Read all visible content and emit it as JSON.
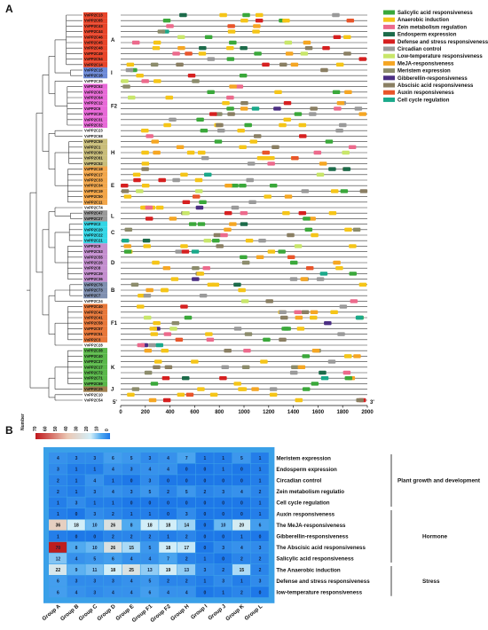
{
  "panel_a_label": "A",
  "panel_b_label": "B",
  "chart_data": [
    {
      "type": "diagram",
      "x_start": 0,
      "x_end": 2000,
      "x_ticks": [
        "0",
        "200",
        "400",
        "600",
        "800",
        "1000",
        "1200",
        "1400",
        "1600",
        "1800",
        "2000"
      ],
      "five_prime": "5'",
      "three_prime": "3'",
      "legend": [
        {
          "name": "Salicylic acid responsiveness",
          "color": "#3aa83a"
        },
        {
          "name": "Anaerobic induction",
          "color": "#f5c518"
        },
        {
          "name": "Zein metabolism regulation",
          "color": "#ec6a8c"
        },
        {
          "name": "Endosperm expression",
          "color": "#1c6b4a"
        },
        {
          "name": "Defense and stress responsiveness",
          "color": "#d62020"
        },
        {
          "name": "Circadian control",
          "color": "#9a9a9a"
        },
        {
          "name": "Low-temperature responsiveness",
          "color": "#c8e66a"
        },
        {
          "name": "MeJA-responsiveness",
          "color": "#f5a623"
        },
        {
          "name": "Meristem expression",
          "color": "#8c8c6c"
        },
        {
          "name": "Gibberellin-responsiveness",
          "color": "#4b2e83"
        },
        {
          "name": "Abscisic acid responsiveness",
          "color": "#8a7f63"
        },
        {
          "name": "Auxin responsiveness",
          "color": "#e8552a"
        },
        {
          "name": "Cell cycle regulation",
          "color": "#1aa98a"
        }
      ],
      "genes": [
        {
          "name": "VvPP2C13",
          "color": "#e8452a"
        },
        {
          "name": "VvPP2C65",
          "color": "#e8452a"
        },
        {
          "name": "VvPP2C43",
          "color": "#e8452a"
        },
        {
          "name": "VvPP2C44",
          "color": "#e8452a"
        },
        {
          "name": "VvPP2C46",
          "color": "#e8452a"
        },
        {
          "name": "VvPP2C45",
          "color": "#e8452a"
        },
        {
          "name": "VvPP2C48",
          "color": "#e8452a"
        },
        {
          "name": "VvPP2C49",
          "color": "#e8452a"
        },
        {
          "name": "VvPP2C54",
          "color": "#e8452a"
        },
        {
          "name": "VvPP2C14",
          "color": "#e8452a"
        },
        {
          "name": "VvPP2C15",
          "color": "#6d8ad8"
        },
        {
          "name": "VvPP2C16",
          "color": "#6d8ad8"
        },
        {
          "name": "VvPP2C35",
          "color": ""
        },
        {
          "name": "VvPP2C62",
          "color": "#e86ad8"
        },
        {
          "name": "VvPP2C63",
          "color": "#e86ad8"
        },
        {
          "name": "VvPP2C64",
          "color": "#e86ad8"
        },
        {
          "name": "VvPP2C12",
          "color": "#e86ad8"
        },
        {
          "name": "VvPP2C6",
          "color": "#e86ad8"
        },
        {
          "name": "VvPP2C30",
          "color": "#e86ad8"
        },
        {
          "name": "VvPP2C31",
          "color": "#e86ad8"
        },
        {
          "name": "VvPP2C32",
          "color": "#e86ad8"
        },
        {
          "name": "VvPP2C23",
          "color": ""
        },
        {
          "name": "VvPP2C68",
          "color": ""
        },
        {
          "name": "VvPP2C59",
          "color": "#c9bd7a"
        },
        {
          "name": "VvPP2C1",
          "color": "#c9bd7a"
        },
        {
          "name": "VvPP2C60",
          "color": "#c9bd7a"
        },
        {
          "name": "VvPP2C61",
          "color": "#c9bd7a"
        },
        {
          "name": "VvPP2C52",
          "color": "#c9bd7a"
        },
        {
          "name": "VvPP2C18",
          "color": "#f2a64a"
        },
        {
          "name": "VvPP2C17",
          "color": "#f2a64a"
        },
        {
          "name": "VvPP2C33",
          "color": "#f2a64a"
        },
        {
          "name": "VvPP2C34",
          "color": "#f2a64a"
        },
        {
          "name": "VvPP2C19",
          "color": "#f2a64a"
        },
        {
          "name": "VvPP2C50",
          "color": "#f2a64a"
        },
        {
          "name": "VvPP2C11",
          "color": "#f2a64a"
        },
        {
          "name": "VvPP2C74",
          "color": ""
        },
        {
          "name": "VvPP2C47",
          "color": "#9a9a9a"
        },
        {
          "name": "VvPP2C27",
          "color": "#9a9a9a"
        },
        {
          "name": "VvPP2C2",
          "color": "#33d6e6"
        },
        {
          "name": "VvPP2C20",
          "color": "#33d6e6"
        },
        {
          "name": "VvPP2C22",
          "color": "#33d6e6"
        },
        {
          "name": "VvPP2C21",
          "color": "#33d6e6"
        },
        {
          "name": "VvPP2C9",
          "color": "#c48fcf"
        },
        {
          "name": "VvPP2C53",
          "color": "#c48fcf"
        },
        {
          "name": "VvPP2C55",
          "color": "#c48fcf"
        },
        {
          "name": "VvPP2C26",
          "color": "#c48fcf"
        },
        {
          "name": "VvPP2C8",
          "color": "#c48fcf"
        },
        {
          "name": "VvPP2C39",
          "color": "#c48fcf"
        },
        {
          "name": "VvPP2C36",
          "color": "#c48fcf"
        },
        {
          "name": "VvPP2C76",
          "color": "#7f8fb0"
        },
        {
          "name": "VvPP2C73",
          "color": "#7f8fb0"
        },
        {
          "name": "VvPP2C7",
          "color": "#7f8fb0"
        },
        {
          "name": "VvPP2C24",
          "color": ""
        },
        {
          "name": "VvPP2C40",
          "color": "#e8783a"
        },
        {
          "name": "VvPP2C42",
          "color": "#e8783a"
        },
        {
          "name": "VvPP2C41",
          "color": "#e8783a"
        },
        {
          "name": "VvPP2C58",
          "color": "#e8783a"
        },
        {
          "name": "VvPP2C57",
          "color": "#e8783a"
        },
        {
          "name": "VvPP2C51",
          "color": "#e8783a"
        },
        {
          "name": "VvPP2C3",
          "color": "#e8783a"
        },
        {
          "name": "VvPP2C28",
          "color": ""
        },
        {
          "name": "VvPP2C38",
          "color": "#5ab84a"
        },
        {
          "name": "VvPP2C40",
          "color": "#5ab84a"
        },
        {
          "name": "VvPP2C37",
          "color": "#5ab84a"
        },
        {
          "name": "VvPP2C17",
          "color": "#5ab84a"
        },
        {
          "name": "VvPP2C72",
          "color": "#5ab84a"
        },
        {
          "name": "VvPP2C71",
          "color": "#5ab84a"
        },
        {
          "name": "VvPP2C69",
          "color": "#5ab84a"
        },
        {
          "name": "VvPP2C25",
          "color": "#a08050"
        },
        {
          "name": "VvPP2C10",
          "color": ""
        },
        {
          "name": "VvPP2C54",
          "color": ""
        }
      ],
      "groups": [
        {
          "label": "A",
          "first": 0,
          "last": 9
        },
        {
          "label": "I",
          "first": 10,
          "last": 11
        },
        {
          "label": "F2",
          "first": 13,
          "last": 20
        },
        {
          "label": "H",
          "first": 23,
          "last": 27
        },
        {
          "label": "E",
          "first": 28,
          "last": 34
        },
        {
          "label": "L",
          "first": 36,
          "last": 37
        },
        {
          "label": "C",
          "first": 38,
          "last": 41
        },
        {
          "label": "D",
          "first": 42,
          "last": 48
        },
        {
          "label": "B",
          "first": 49,
          "last": 51
        },
        {
          "label": "F1",
          "first": 53,
          "last": 59
        },
        {
          "label": "K",
          "first": 61,
          "last": 67
        },
        {
          "label": "J",
          "first": 68,
          "last": 68
        }
      ]
    },
    {
      "type": "heatmap",
      "scale_title": "Number",
      "scale_ticks": [
        "70",
        "60",
        "50",
        "40",
        "30",
        "20",
        "10",
        "0"
      ],
      "columns": [
        "Group A",
        "Group B",
        "Group C",
        "Group D",
        "Group E",
        "Group F1",
        "Group F2",
        "Group H",
        "Group I",
        "Group J",
        "Group K",
        "Group L"
      ],
      "rows": [
        "Meristem expression",
        "Endosperm expression",
        "Circadian control",
        "Zein metabolism regulatio",
        "Cell cycle regulation",
        "Auxin responsiveness",
        "The MeJA-responsiveness",
        "Gibberellin-responsiveness",
        "The Abscisic acid responsiveness",
        "Salicylic acid responsiveness",
        "The Anaerobic induction",
        "Defense and stress responsiveness",
        "low-temperature responsiveness"
      ],
      "values": [
        [
          4,
          3,
          3,
          6,
          5,
          3,
          4,
          7,
          1,
          1,
          5,
          1
        ],
        [
          3,
          1,
          1,
          4,
          3,
          4,
          4,
          0,
          0,
          1,
          0,
          1
        ],
        [
          2,
          1,
          4,
          1,
          0,
          3,
          0,
          0,
          0,
          0,
          0,
          1
        ],
        [
          2,
          1,
          3,
          4,
          3,
          5,
          2,
          5,
          2,
          3,
          4,
          2
        ],
        [
          1,
          3,
          1,
          1,
          0,
          0,
          0,
          0,
          0,
          0,
          0,
          1
        ],
        [
          1,
          0,
          3,
          2,
          1,
          1,
          0,
          3,
          0,
          0,
          0,
          1
        ],
        [
          36,
          18,
          10,
          26,
          8,
          18,
          18,
          14,
          0,
          10,
          20,
          6
        ],
        [
          1,
          0,
          0,
          2,
          2,
          2,
          1,
          2,
          0,
          0,
          1,
          0
        ],
        [
          70,
          8,
          10,
          26,
          15,
          5,
          18,
          17,
          0,
          3,
          4,
          3
        ],
        [
          12,
          4,
          5,
          6,
          4,
          4,
          7,
          2,
          1,
          0,
          2,
          2
        ],
        [
          22,
          9,
          11,
          18,
          25,
          13,
          19,
          13,
          3,
          2,
          15,
          2
        ],
        [
          6,
          3,
          3,
          3,
          4,
          5,
          2,
          2,
          1,
          3,
          1,
          3
        ],
        [
          6,
          4,
          3,
          4,
          4,
          6,
          4,
          4,
          0,
          1,
          2,
          0
        ]
      ],
      "categories": [
        {
          "label": "Plant growth and development",
          "first_row": 0,
          "last_row": 4
        },
        {
          "label": "Hormone",
          "first_row": 5,
          "last_row": 9
        },
        {
          "label": "Stress",
          "first_row": 10,
          "last_row": 12
        }
      ]
    }
  ]
}
